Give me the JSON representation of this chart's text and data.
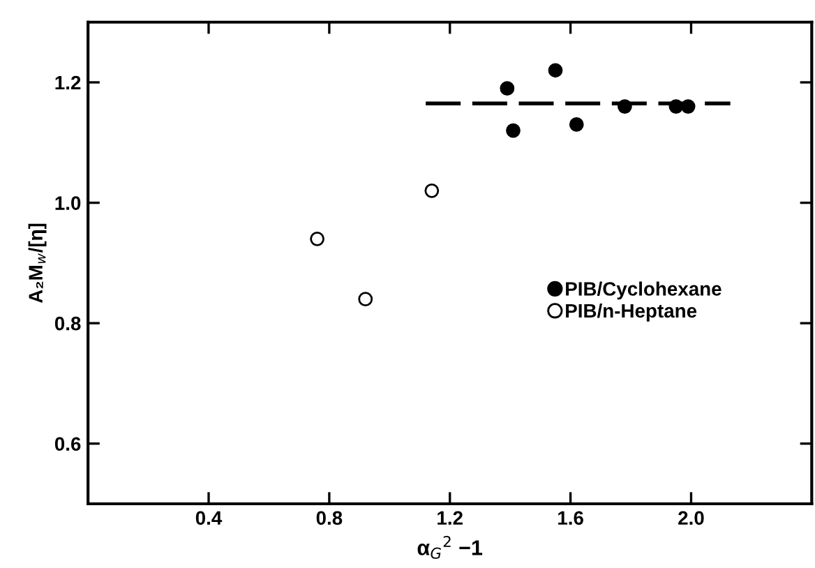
{
  "chart_data": {
    "type": "scatter",
    "xlabel": "α$_{G}$$^{2}$ −1",
    "ylabel": "A₂M$_{w}$/[η]",
    "xlim": [
      0,
      2.4
    ],
    "ylim": [
      0.5,
      1.3
    ],
    "xticks": [
      0.4,
      0.8,
      1.2,
      1.6,
      {
        "value": 2,
        "label": "2.0"
      }
    ],
    "yticks": [
      0.6,
      0.8,
      {
        "value": 1,
        "label": "1.0"
      },
      1.2
    ],
    "legend": "right",
    "grid": false,
    "series": [
      {
        "name": "PIB/Cyclohexane",
        "color": "#000000",
        "marker": "circle",
        "x": [
          1.39,
          1.41,
          1.55,
          1.62,
          1.78,
          1.95,
          1.99
        ],
        "values": [
          1.19,
          1.12,
          1.22,
          1.13,
          1.16,
          1.16,
          1.16
        ]
      },
      {
        "name": "PIB/n-Heptane",
        "color": "#ffffff",
        "marker": "circle",
        "x": [
          0.76,
          0.92,
          1.14
        ],
        "values": [
          0.94,
          0.84,
          1.02
        ]
      },
      {
        "type": "line",
        "color": "#000000",
        "line_style": "dashed",
        "x": [
          1.12,
          2.13
        ],
        "values": [
          1.165,
          1.165
        ]
      }
    ]
  }
}
